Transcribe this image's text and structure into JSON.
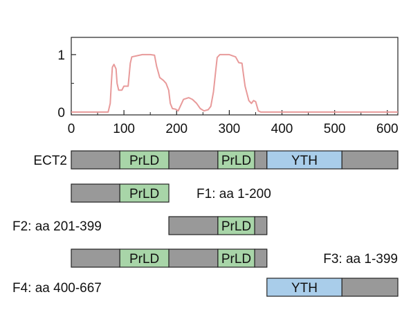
{
  "chart_data": {
    "type": "line",
    "x_ticks": [
      0,
      100,
      200,
      300,
      400,
      500,
      600
    ],
    "y_ticks": [
      0,
      1
    ],
    "xlim": [
      0,
      620
    ],
    "ylim": [
      -0.05,
      1.3
    ],
    "series": [
      {
        "color": "#e89a9a",
        "points": [
          [
            0,
            0
          ],
          [
            70,
            0
          ],
          [
            74,
            0.15
          ],
          [
            76,
            0.5
          ],
          [
            78,
            0.78
          ],
          [
            81,
            0.83
          ],
          [
            85,
            0.75
          ],
          [
            87,
            0.5
          ],
          [
            90,
            0.38
          ],
          [
            96,
            0.38
          ],
          [
            100,
            0.45
          ],
          [
            108,
            0.45
          ],
          [
            112,
            0.85
          ],
          [
            115,
            0.96
          ],
          [
            125,
            0.98
          ],
          [
            135,
            1.0
          ],
          [
            150,
            1.0
          ],
          [
            158,
            0.99
          ],
          [
            162,
            0.8
          ],
          [
            168,
            0.6
          ],
          [
            175,
            0.55
          ],
          [
            180,
            0.5
          ],
          [
            185,
            0.38
          ],
          [
            188,
            0.15
          ],
          [
            192,
            0.06
          ],
          [
            198,
            0.05
          ],
          [
            203,
            0.02
          ],
          [
            207,
            0.1
          ],
          [
            213,
            0.22
          ],
          [
            223,
            0.25
          ],
          [
            230,
            0.22
          ],
          [
            238,
            0.15
          ],
          [
            245,
            0.06
          ],
          [
            252,
            0.02
          ],
          [
            260,
            0.04
          ],
          [
            265,
            0.1
          ],
          [
            270,
            0.35
          ],
          [
            274,
            0.7
          ],
          [
            277,
            0.95
          ],
          [
            282,
            1.0
          ],
          [
            300,
            1.0
          ],
          [
            312,
            0.96
          ],
          [
            318,
            0.86
          ],
          [
            324,
            0.85
          ],
          [
            327,
            0.65
          ],
          [
            330,
            0.45
          ],
          [
            337,
            0.2
          ],
          [
            342,
            0.15
          ],
          [
            346,
            0.2
          ],
          [
            350,
            0.18
          ],
          [
            355,
            0.02
          ],
          [
            360,
            0
          ],
          [
            620,
            0
          ]
        ]
      }
    ],
    "domain_map": {
      "scale": [
        0,
        667
      ],
      "tracks": [
        {
          "label": "ECT2",
          "label_side": "left",
          "segments": [
            {
              "start": 1,
              "end": 100,
              "type": "linker"
            },
            {
              "start": 100,
              "end": 200,
              "type": "PrLD",
              "label": "PrLD"
            },
            {
              "start": 200,
              "end": 300,
              "type": "linker"
            },
            {
              "start": 300,
              "end": 375,
              "type": "PrLD",
              "label": "PrLD"
            },
            {
              "start": 375,
              "end": 400,
              "type": "linker"
            },
            {
              "start": 400,
              "end": 553,
              "type": "YTH",
              "label": "YTH"
            },
            {
              "start": 553,
              "end": 667,
              "type": "linker"
            }
          ]
        },
        {
          "label": "F1: aa 1-200",
          "label_side": "right",
          "segments": [
            {
              "start": 1,
              "end": 100,
              "type": "linker"
            },
            {
              "start": 100,
              "end": 200,
              "type": "PrLD",
              "label": "PrLD"
            }
          ]
        },
        {
          "label": "F2: aa 201-399",
          "label_side": "left",
          "segments": [
            {
              "start": 200,
              "end": 300,
              "type": "linker"
            },
            {
              "start": 300,
              "end": 375,
              "type": "PrLD",
              "label": "PrLD"
            },
            {
              "start": 375,
              "end": 400,
              "type": "linker"
            }
          ]
        },
        {
          "label": "F3: aa 1-399",
          "label_side": "right",
          "segments": [
            {
              "start": 1,
              "end": 100,
              "type": "linker"
            },
            {
              "start": 100,
              "end": 200,
              "type": "PrLD",
              "label": "PrLD"
            },
            {
              "start": 200,
              "end": 300,
              "type": "linker"
            },
            {
              "start": 300,
              "end": 375,
              "type": "PrLD",
              "label": "PrLD"
            },
            {
              "start": 375,
              "end": 400,
              "type": "linker"
            }
          ]
        },
        {
          "label": "F4: aa 400-667",
          "label_side": "left",
          "segments": [
            {
              "start": 400,
              "end": 553,
              "type": "YTH",
              "label": "YTH"
            },
            {
              "start": 553,
              "end": 667,
              "type": "linker"
            }
          ]
        }
      ]
    }
  },
  "colors": {
    "linker": "#999999",
    "PrLD": "#a8d5a8",
    "YTH": "#a9cdea",
    "outline": "#222222"
  }
}
